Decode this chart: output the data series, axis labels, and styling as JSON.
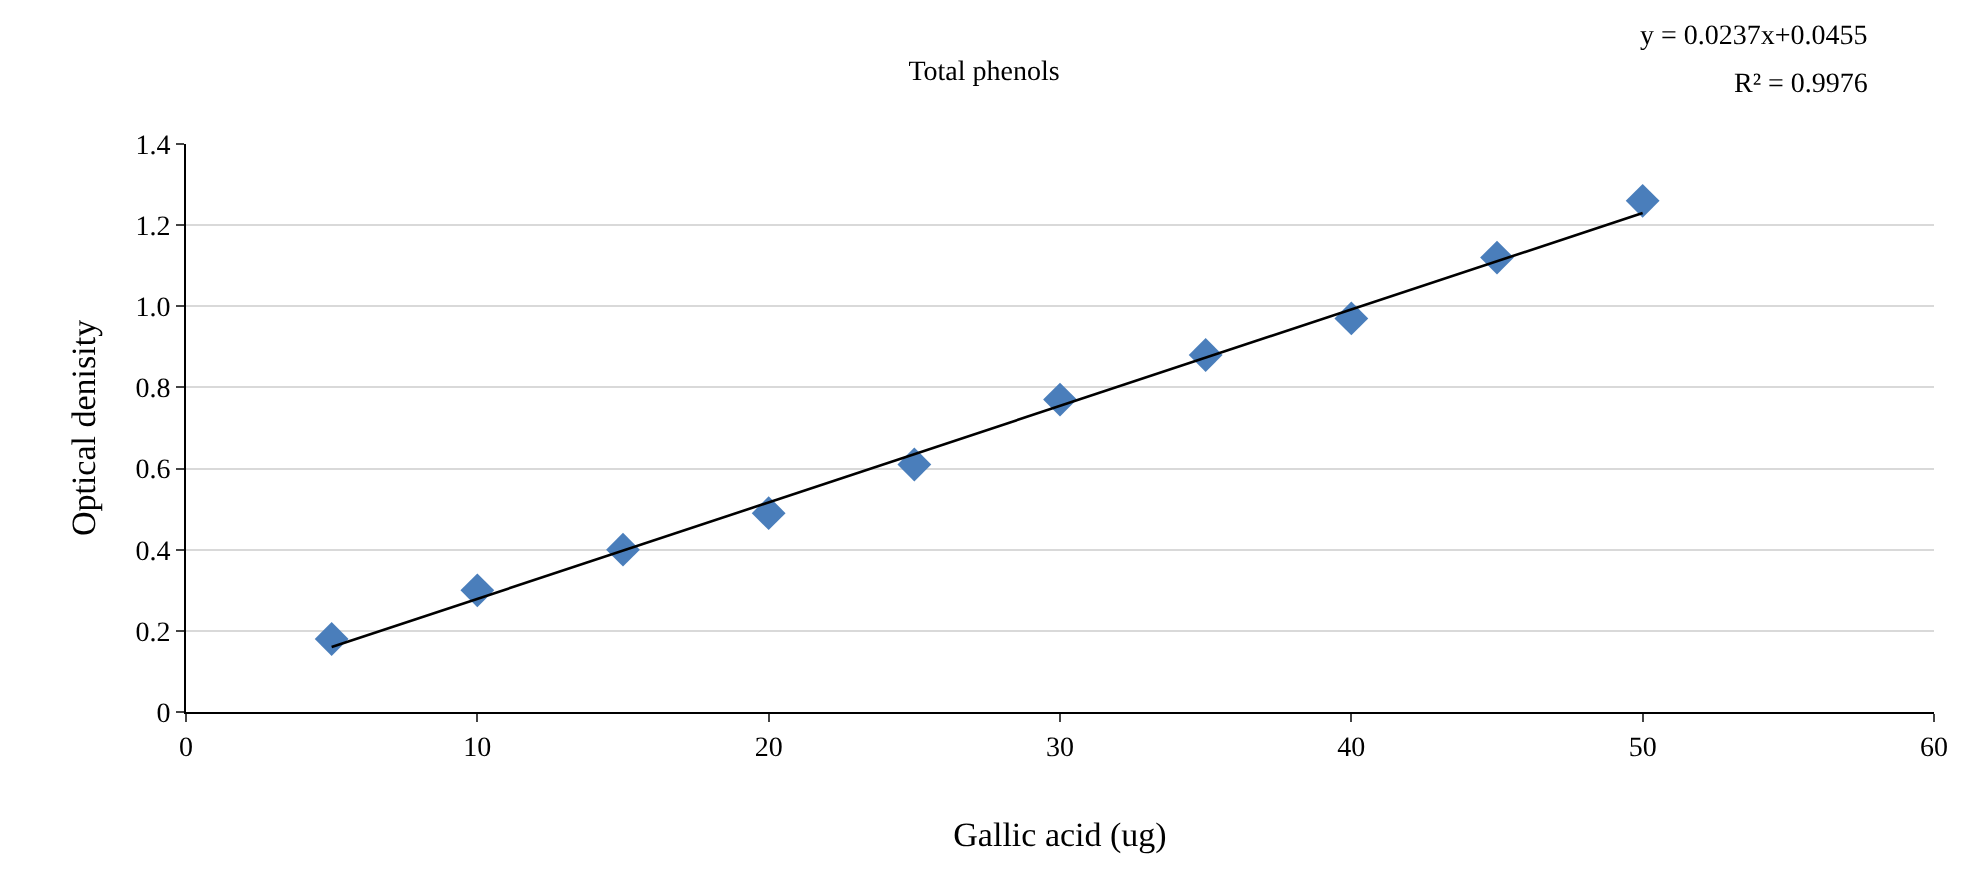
{
  "chart_data": {
    "type": "scatter",
    "title": "Total phenols",
    "xlabel": "Gallic acid (ug)",
    "ylabel": "Optical denisity",
    "x": [
      5,
      10,
      15,
      20,
      25,
      30,
      35,
      40,
      45,
      50
    ],
    "series": [
      {
        "color": "#4a7ebb",
        "values": [
          0.18,
          0.3,
          0.4,
          0.49,
          0.61,
          0.77,
          0.88,
          0.97,
          1.12,
          1.26
        ],
        "marker": "diamond"
      },
      {
        "type": "line",
        "color": "#000000",
        "x": [
          5,
          50
        ],
        "values": [
          0.16,
          1.23
        ],
        "marker": "none"
      }
    ],
    "xlim": [
      0,
      60
    ],
    "xticks": [
      0,
      10,
      20,
      30,
      40,
      50,
      60
    ],
    "ylim": [
      0,
      1.4
    ],
    "yticks": [
      0,
      0.2,
      0.4,
      0.6,
      0.8,
      {
        "value": 1,
        "label": "1.0"
      },
      1.2,
      1.4
    ],
    "grid": "y",
    "annotations": [
      "y = 0.0237x+0.0455",
      "R² = 0.9976"
    ]
  }
}
